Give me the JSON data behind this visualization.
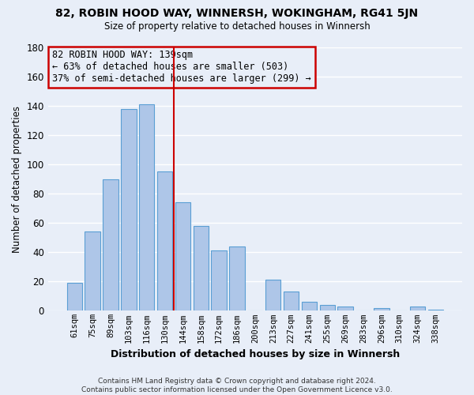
{
  "title": "82, ROBIN HOOD WAY, WINNERSH, WOKINGHAM, RG41 5JN",
  "subtitle": "Size of property relative to detached houses in Winnersh",
  "xlabel": "Distribution of detached houses by size in Winnersh",
  "ylabel": "Number of detached properties",
  "bar_labels": [
    "61sqm",
    "75sqm",
    "89sqm",
    "103sqm",
    "116sqm",
    "130sqm",
    "144sqm",
    "158sqm",
    "172sqm",
    "186sqm",
    "200sqm",
    "213sqm",
    "227sqm",
    "241sqm",
    "255sqm",
    "269sqm",
    "283sqm",
    "296sqm",
    "310sqm",
    "324sqm",
    "338sqm"
  ],
  "bar_values": [
    19,
    54,
    90,
    138,
    141,
    95,
    74,
    58,
    41,
    44,
    0,
    21,
    13,
    6,
    4,
    3,
    0,
    2,
    0,
    3,
    1
  ],
  "bar_color": "#aec6e8",
  "bar_edge_color": "#5a9fd4",
  "annotation_line1": "82 ROBIN HOOD WAY: 139sqm",
  "annotation_line2": "← 63% of detached houses are smaller (503)",
  "annotation_line3": "37% of semi-detached houses are larger (299) →",
  "annotation_box_edge_color": "#cc0000",
  "annotation_line_color": "#cc0000",
  "ylim": [
    0,
    180
  ],
  "yticks": [
    0,
    20,
    40,
    60,
    80,
    100,
    120,
    140,
    160,
    180
  ],
  "footer_line1": "Contains HM Land Registry data © Crown copyright and database right 2024.",
  "footer_line2": "Contains public sector information licensed under the Open Government Licence v3.0.",
  "background_color": "#e8eef8",
  "grid_color": "#ffffff"
}
